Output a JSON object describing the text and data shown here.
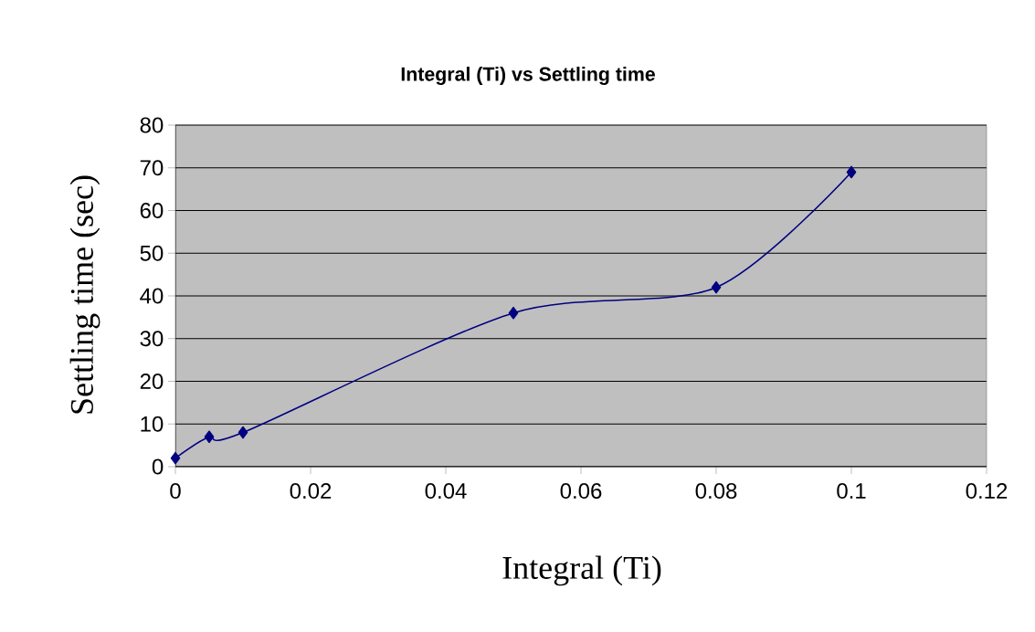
{
  "chart_data": {
    "type": "line",
    "title": "Integral (Ti) vs Settling time",
    "xlabel": "Integral (Ti)",
    "ylabel": "Settling time (sec)",
    "x": [
      0,
      0.005,
      0.01,
      0.05,
      0.08,
      0.1
    ],
    "series": [
      {
        "color": "#000080",
        "values": [
          2,
          7,
          8,
          36,
          42,
          69
        ]
      }
    ],
    "xlim": [
      0,
      0.12
    ],
    "xticks": [
      0,
      0.02,
      0.04,
      0.06,
      0.08,
      0.1,
      0.12
    ],
    "ylim": [
      0,
      80
    ],
    "yticks": [
      0,
      10,
      20,
      30,
      40,
      50,
      60,
      70,
      80
    ],
    "grid": "y",
    "marker": "diamond",
    "line_style": "solid"
  }
}
